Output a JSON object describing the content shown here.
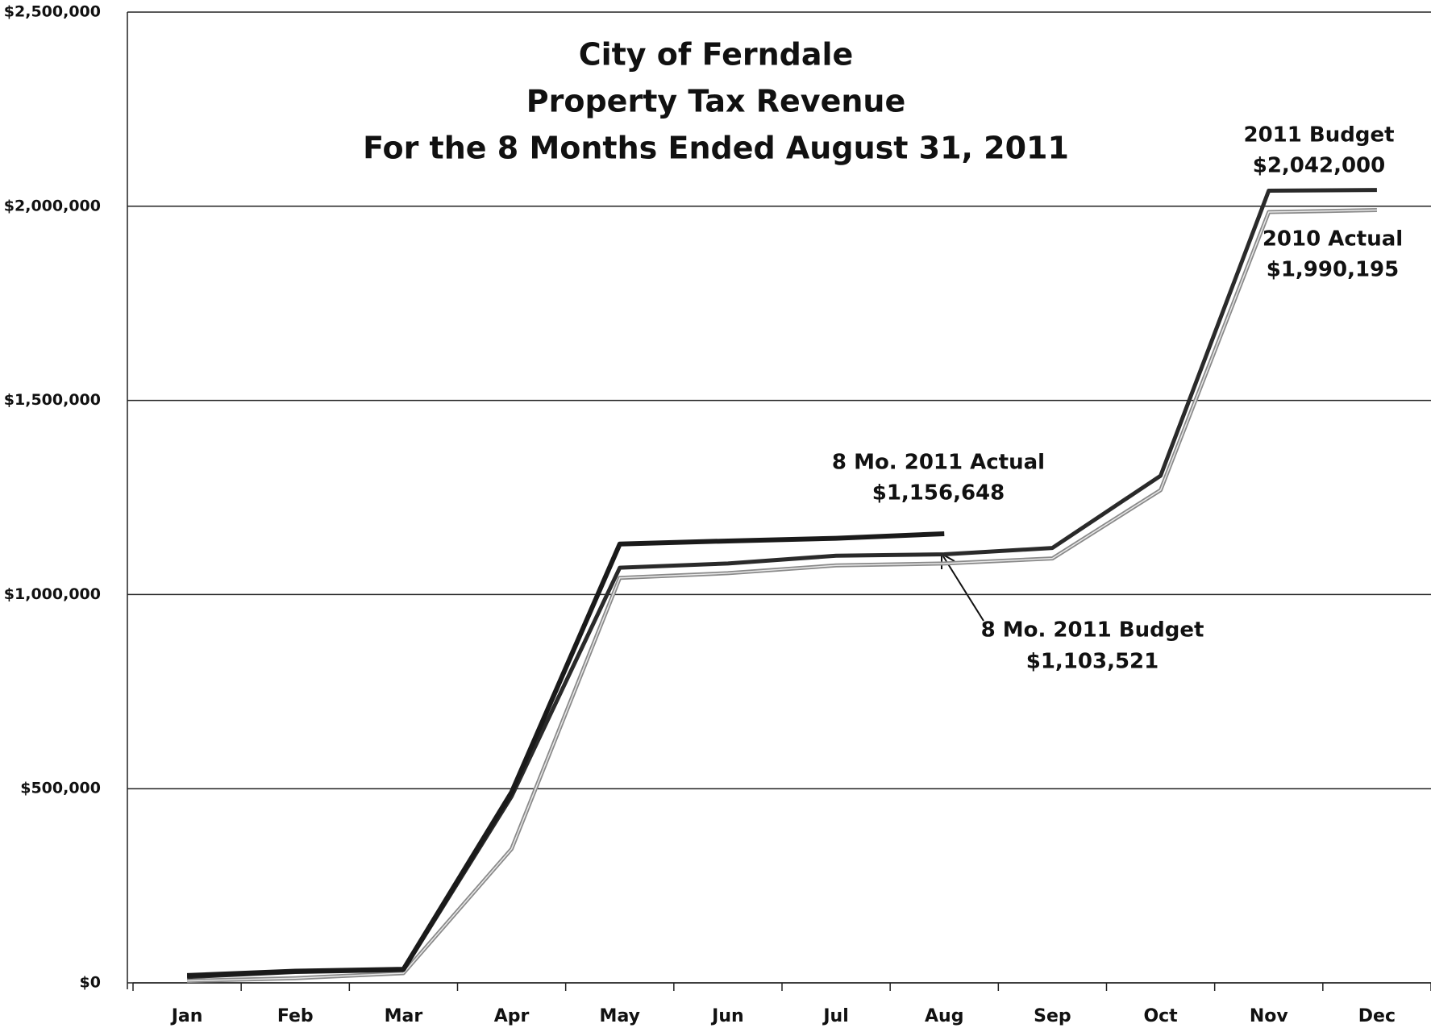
{
  "chart_data": {
    "type": "line",
    "title": [
      "City of Ferndale",
      "Property Tax Revenue",
      "For the 8 Months Ended August 31, 2011"
    ],
    "categories": [
      "Jan",
      "Feb",
      "Mar",
      "Apr",
      "May",
      "Jun",
      "Jul",
      "Aug",
      "Sep",
      "Oct",
      "Nov",
      "Dec"
    ],
    "series": [
      {
        "name": "2010 Actual",
        "color": "#8a8a8a",
        "values": [
          5000,
          12000,
          25000,
          345000,
          1043000,
          1055000,
          1075000,
          1080000,
          1093000,
          1269000,
          1985000,
          1990195
        ]
      },
      {
        "name": "2011 Budget",
        "color": "#2a2a2a",
        "values": [
          15000,
          28000,
          33000,
          480000,
          1069000,
          1080000,
          1100000,
          1103521,
          1120000,
          1306000,
          2040000,
          2042000
        ]
      },
      {
        "name": "8 Mo. 2011 Actual",
        "color": "#1a1a1a",
        "values": [
          19000,
          30000,
          35000,
          491000,
          1130000,
          1138000,
          1145000,
          1156648,
          null,
          null,
          null,
          null
        ]
      }
    ],
    "annotations": [
      {
        "label": "2011 Budget",
        "value_label": "$2,042,000"
      },
      {
        "label": "2010 Actual",
        "value_label": "$1,990,195"
      },
      {
        "label": "8 Mo. 2011 Actual",
        "value_label": "$1,156,648"
      },
      {
        "label": "8 Mo. 2011 Budget",
        "value_label": "$1,103,521"
      }
    ],
    "ylim": [
      0,
      2500000
    ],
    "yticks": [
      {
        "value": 0,
        "label": "$0"
      },
      {
        "value": 500000,
        "label": "$500,000"
      },
      {
        "value": 1000000,
        "label": "$1,000,000"
      },
      {
        "value": 1500000,
        "label": "$1,500,000"
      },
      {
        "value": 2000000,
        "label": "$2,000,000"
      },
      {
        "value": 2500000,
        "label": "$2,500,000"
      }
    ],
    "grid": true
  }
}
